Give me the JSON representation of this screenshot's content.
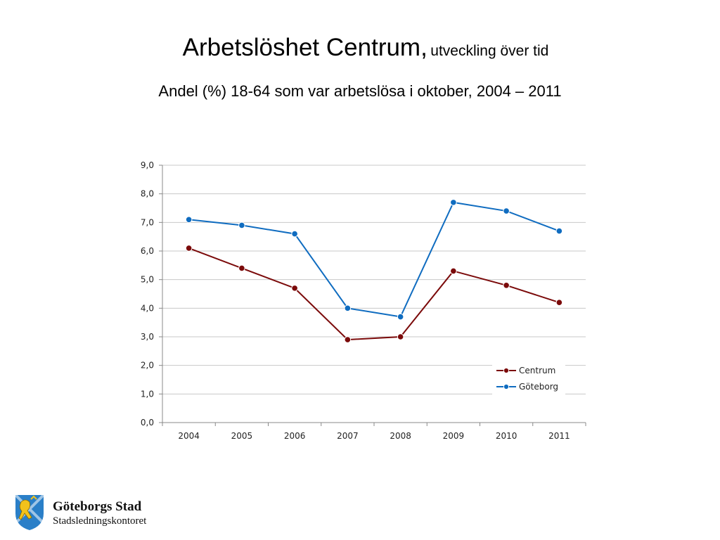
{
  "title": {
    "main": "Arbetslöshet Centrum,",
    "sub": "utveckling över tid"
  },
  "subtitle": "Andel (%) 18-64 som var arbetslösa i oktober, 2004 – 2011",
  "logo": {
    "name": "Göteborgs Stad",
    "unit": "Stadsledningskontoret"
  },
  "chart_data": {
    "type": "line",
    "x": [
      "2004",
      "2005",
      "2006",
      "2007",
      "2008",
      "2009",
      "2010",
      "2011"
    ],
    "series": [
      {
        "name": "Centrum",
        "color": "#7b0a0a",
        "values": [
          6.1,
          5.4,
          4.7,
          2.9,
          3.0,
          5.3,
          4.8,
          4.2
        ]
      },
      {
        "name": "Göteborg",
        "color": "#0f6cc0",
        "values": [
          7.1,
          6.9,
          6.6,
          4.0,
          3.7,
          7.7,
          7.4,
          6.7
        ]
      }
    ],
    "ylim": [
      0,
      9
    ],
    "yticks": [
      "0,0",
      "1,0",
      "2,0",
      "3,0",
      "4,0",
      "5,0",
      "6,0",
      "7,0",
      "8,0",
      "9,0"
    ],
    "grid": true,
    "legend": "lower-right"
  }
}
